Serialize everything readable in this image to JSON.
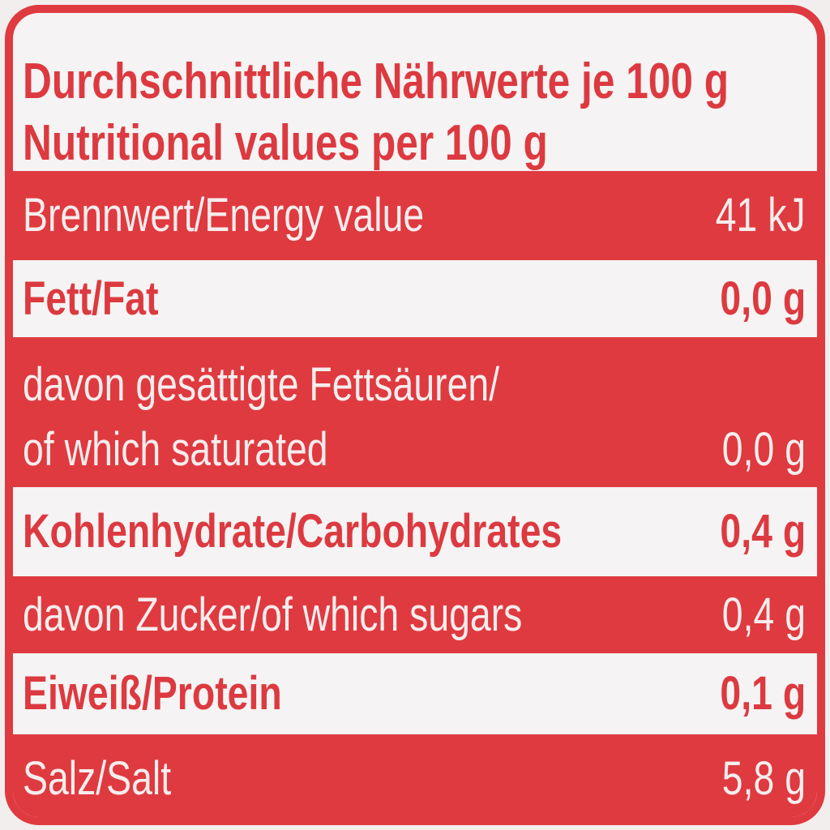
{
  "header": {
    "lines": [
      "Durchschnittliche Nährwerte je 100 g",
      "Nutritional values per 100 g"
    ]
  },
  "table": {
    "rows": [
      {
        "label": [
          "Brennwert/Energy value"
        ],
        "value": "41 kJ"
      },
      {
        "label": [
          "Fett/Fat"
        ],
        "value": "0,0 g"
      },
      {
        "label": [
          "davon gesättigte Fettsäuren/",
          "of which saturated"
        ],
        "value": "0,0 g"
      },
      {
        "label": [
          "Kohlenhydrate/Carbohydrates"
        ],
        "value": "0,4 g"
      },
      {
        "label": [
          "davon Zucker/of which sugars"
        ],
        "value": "0,4 g"
      },
      {
        "label": [
          "Eiweiß/Protein"
        ],
        "value": "0,1 g"
      },
      {
        "label": [
          "Salz/Salt"
        ],
        "value": "5,8 g"
      }
    ]
  }
}
